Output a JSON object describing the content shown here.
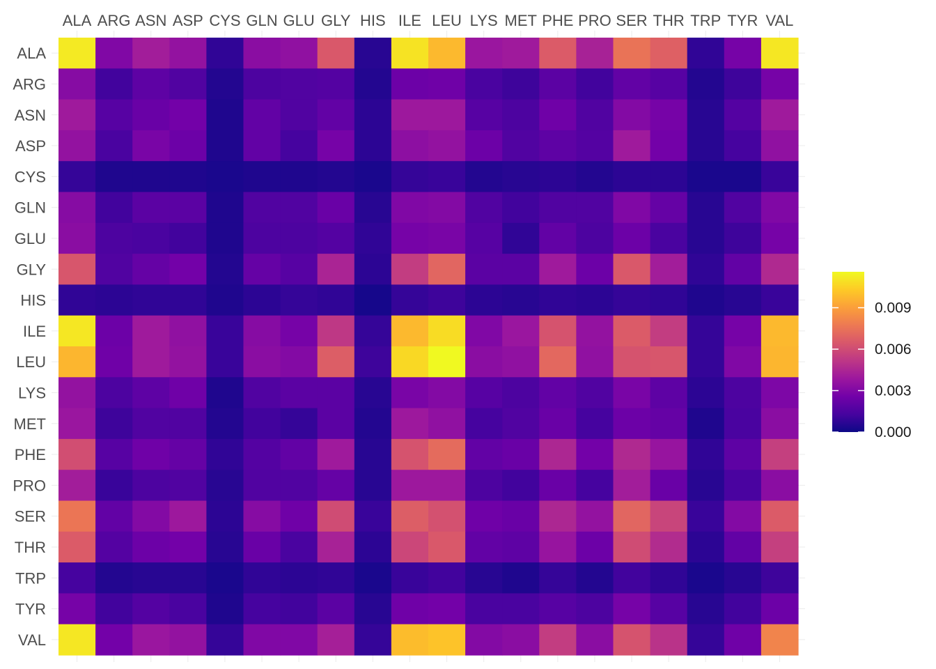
{
  "chart_data": {
    "type": "heatmap",
    "title": "",
    "xlabel": "",
    "ylabel": "",
    "x_categories": [
      "ALA",
      "ARG",
      "ASN",
      "ASP",
      "CYS",
      "GLN",
      "GLU",
      "GLY",
      "HIS",
      "ILE",
      "LEU",
      "LYS",
      "MET",
      "PHE",
      "PRO",
      "SER",
      "THR",
      "TRP",
      "TYR",
      "VAL"
    ],
    "y_categories": [
      "ALA",
      "ARG",
      "ASN",
      "ASP",
      "CYS",
      "GLN",
      "GLU",
      "GLY",
      "HIS",
      "ILE",
      "LEU",
      "LYS",
      "MET",
      "PHE",
      "PRO",
      "SER",
      "THR",
      "TRP",
      "TYR",
      "VAL"
    ],
    "values": [
      [
        0.0112,
        0.003,
        0.0041,
        0.0036,
        0.0008,
        0.0033,
        0.0035,
        0.0065,
        0.0006,
        0.011,
        0.0098,
        0.0038,
        0.004,
        0.0066,
        0.0043,
        0.0075,
        0.0068,
        0.0008,
        0.0027,
        0.0111
      ],
      [
        0.0032,
        0.0012,
        0.002,
        0.0016,
        0.0005,
        0.0015,
        0.0016,
        0.0017,
        0.0005,
        0.0024,
        0.0025,
        0.0014,
        0.0011,
        0.0019,
        0.0012,
        0.0021,
        0.0018,
        0.0005,
        0.0011,
        0.0027
      ],
      [
        0.004,
        0.0018,
        0.0023,
        0.0026,
        0.0004,
        0.0021,
        0.0016,
        0.0021,
        0.0007,
        0.0039,
        0.0039,
        0.0018,
        0.0015,
        0.0025,
        0.0016,
        0.0031,
        0.0027,
        0.0006,
        0.0017,
        0.004
      ],
      [
        0.0036,
        0.0014,
        0.0028,
        0.0024,
        0.0004,
        0.0021,
        0.0013,
        0.0027,
        0.0007,
        0.0034,
        0.0036,
        0.0024,
        0.0016,
        0.002,
        0.0017,
        0.004,
        0.0026,
        0.0006,
        0.0013,
        0.0035
      ],
      [
        0.0009,
        0.0004,
        0.0004,
        0.0004,
        0.0003,
        0.0004,
        0.0004,
        0.0005,
        0.0003,
        0.0009,
        0.001,
        0.0005,
        0.0006,
        0.0007,
        0.0005,
        0.0007,
        0.0007,
        0.0003,
        0.0003,
        0.001
      ],
      [
        0.0032,
        0.0012,
        0.0019,
        0.0019,
        0.0004,
        0.0016,
        0.0016,
        0.0023,
        0.0006,
        0.003,
        0.0031,
        0.0016,
        0.0012,
        0.0016,
        0.0016,
        0.003,
        0.0022,
        0.0006,
        0.0016,
        0.003
      ],
      [
        0.0033,
        0.0015,
        0.0014,
        0.0012,
        0.0004,
        0.0015,
        0.0015,
        0.0017,
        0.0008,
        0.0027,
        0.0028,
        0.0018,
        0.0008,
        0.0021,
        0.0015,
        0.0024,
        0.0014,
        0.0006,
        0.0011,
        0.0027
      ],
      [
        0.0064,
        0.0016,
        0.0022,
        0.0026,
        0.0005,
        0.0022,
        0.0018,
        0.0044,
        0.0007,
        0.0054,
        0.007,
        0.0019,
        0.0019,
        0.004,
        0.0024,
        0.0065,
        0.0041,
        0.0008,
        0.0021,
        0.0046
      ],
      [
        0.0008,
        0.0007,
        0.0008,
        0.0008,
        0.0004,
        0.0007,
        0.0009,
        0.0008,
        0.0002,
        0.0009,
        0.0011,
        0.0007,
        0.0006,
        0.0008,
        0.0007,
        0.0009,
        0.0008,
        0.0004,
        0.0006,
        0.001
      ],
      [
        0.0111,
        0.0024,
        0.004,
        0.0035,
        0.001,
        0.0032,
        0.0027,
        0.0052,
        0.0009,
        0.0098,
        0.0108,
        0.003,
        0.0038,
        0.0063,
        0.0036,
        0.0066,
        0.0054,
        0.0009,
        0.0027,
        0.0098
      ],
      [
        0.0097,
        0.0025,
        0.004,
        0.0036,
        0.001,
        0.0033,
        0.0031,
        0.0067,
        0.0011,
        0.0107,
        0.0116,
        0.0033,
        0.0035,
        0.0071,
        0.0035,
        0.0063,
        0.0064,
        0.0009,
        0.003,
        0.0097
      ],
      [
        0.0036,
        0.0015,
        0.002,
        0.0025,
        0.0004,
        0.0016,
        0.0019,
        0.0019,
        0.0006,
        0.0028,
        0.0031,
        0.0018,
        0.0015,
        0.0021,
        0.0016,
        0.0028,
        0.002,
        0.0007,
        0.0015,
        0.0029
      ],
      [
        0.0038,
        0.0011,
        0.0016,
        0.0016,
        0.0005,
        0.0012,
        0.0009,
        0.0019,
        0.0005,
        0.0039,
        0.0035,
        0.0013,
        0.0016,
        0.0023,
        0.0013,
        0.0024,
        0.0022,
        0.0004,
        0.0014,
        0.0033
      ],
      [
        0.0061,
        0.0018,
        0.0025,
        0.0022,
        0.0008,
        0.0017,
        0.0021,
        0.004,
        0.0006,
        0.0063,
        0.0072,
        0.0021,
        0.0023,
        0.0045,
        0.0026,
        0.0046,
        0.0037,
        0.0008,
        0.002,
        0.0055
      ],
      [
        0.0041,
        0.001,
        0.0015,
        0.0016,
        0.0006,
        0.0016,
        0.0016,
        0.0022,
        0.0006,
        0.0039,
        0.0039,
        0.0015,
        0.0012,
        0.0023,
        0.0013,
        0.0041,
        0.0023,
        0.0006,
        0.0014,
        0.0033
      ],
      [
        0.0076,
        0.0021,
        0.0031,
        0.0039,
        0.0007,
        0.0032,
        0.0025,
        0.006,
        0.001,
        0.0067,
        0.0062,
        0.0025,
        0.0023,
        0.0045,
        0.0036,
        0.007,
        0.0057,
        0.001,
        0.0031,
        0.0066
      ],
      [
        0.0066,
        0.0017,
        0.0024,
        0.0026,
        0.0006,
        0.0023,
        0.0014,
        0.0043,
        0.0007,
        0.0058,
        0.0065,
        0.0021,
        0.002,
        0.0037,
        0.0024,
        0.006,
        0.0047,
        0.0007,
        0.0021,
        0.0055
      ],
      [
        0.0013,
        0.0005,
        0.0006,
        0.0006,
        0.0003,
        0.0008,
        0.0007,
        0.0008,
        0.0003,
        0.001,
        0.0012,
        0.0006,
        0.0004,
        0.0009,
        0.0005,
        0.0012,
        0.0008,
        0.0003,
        0.0006,
        0.0011
      ],
      [
        0.0027,
        0.0012,
        0.0017,
        0.0014,
        0.0004,
        0.0013,
        0.0012,
        0.0019,
        0.0006,
        0.0025,
        0.0026,
        0.0014,
        0.0014,
        0.0018,
        0.0015,
        0.0027,
        0.0018,
        0.0006,
        0.0012,
        0.0024
      ],
      [
        0.0111,
        0.0026,
        0.0038,
        0.0036,
        0.0009,
        0.003,
        0.003,
        0.0042,
        0.0009,
        0.0099,
        0.0101,
        0.0031,
        0.0033,
        0.0054,
        0.0033,
        0.0063,
        0.005,
        0.0009,
        0.0025,
        0.0081
      ]
    ],
    "color_scale": {
      "name": "plasma",
      "domain": [
        0,
        0.0116
      ],
      "stops": [
        "#0d0887",
        "#46039f",
        "#7201a8",
        "#9c179e",
        "#bd3786",
        "#d8576b",
        "#ed7953",
        "#fb9f3a",
        "#fdca26",
        "#f0f921"
      ]
    },
    "legend": {
      "position": "right",
      "title": "",
      "ticks": [
        0.0,
        0.003,
        0.006,
        0.009
      ],
      "tick_labels": [
        "0.000",
        "0.003",
        "0.006",
        "0.009"
      ]
    },
    "grid": true
  }
}
